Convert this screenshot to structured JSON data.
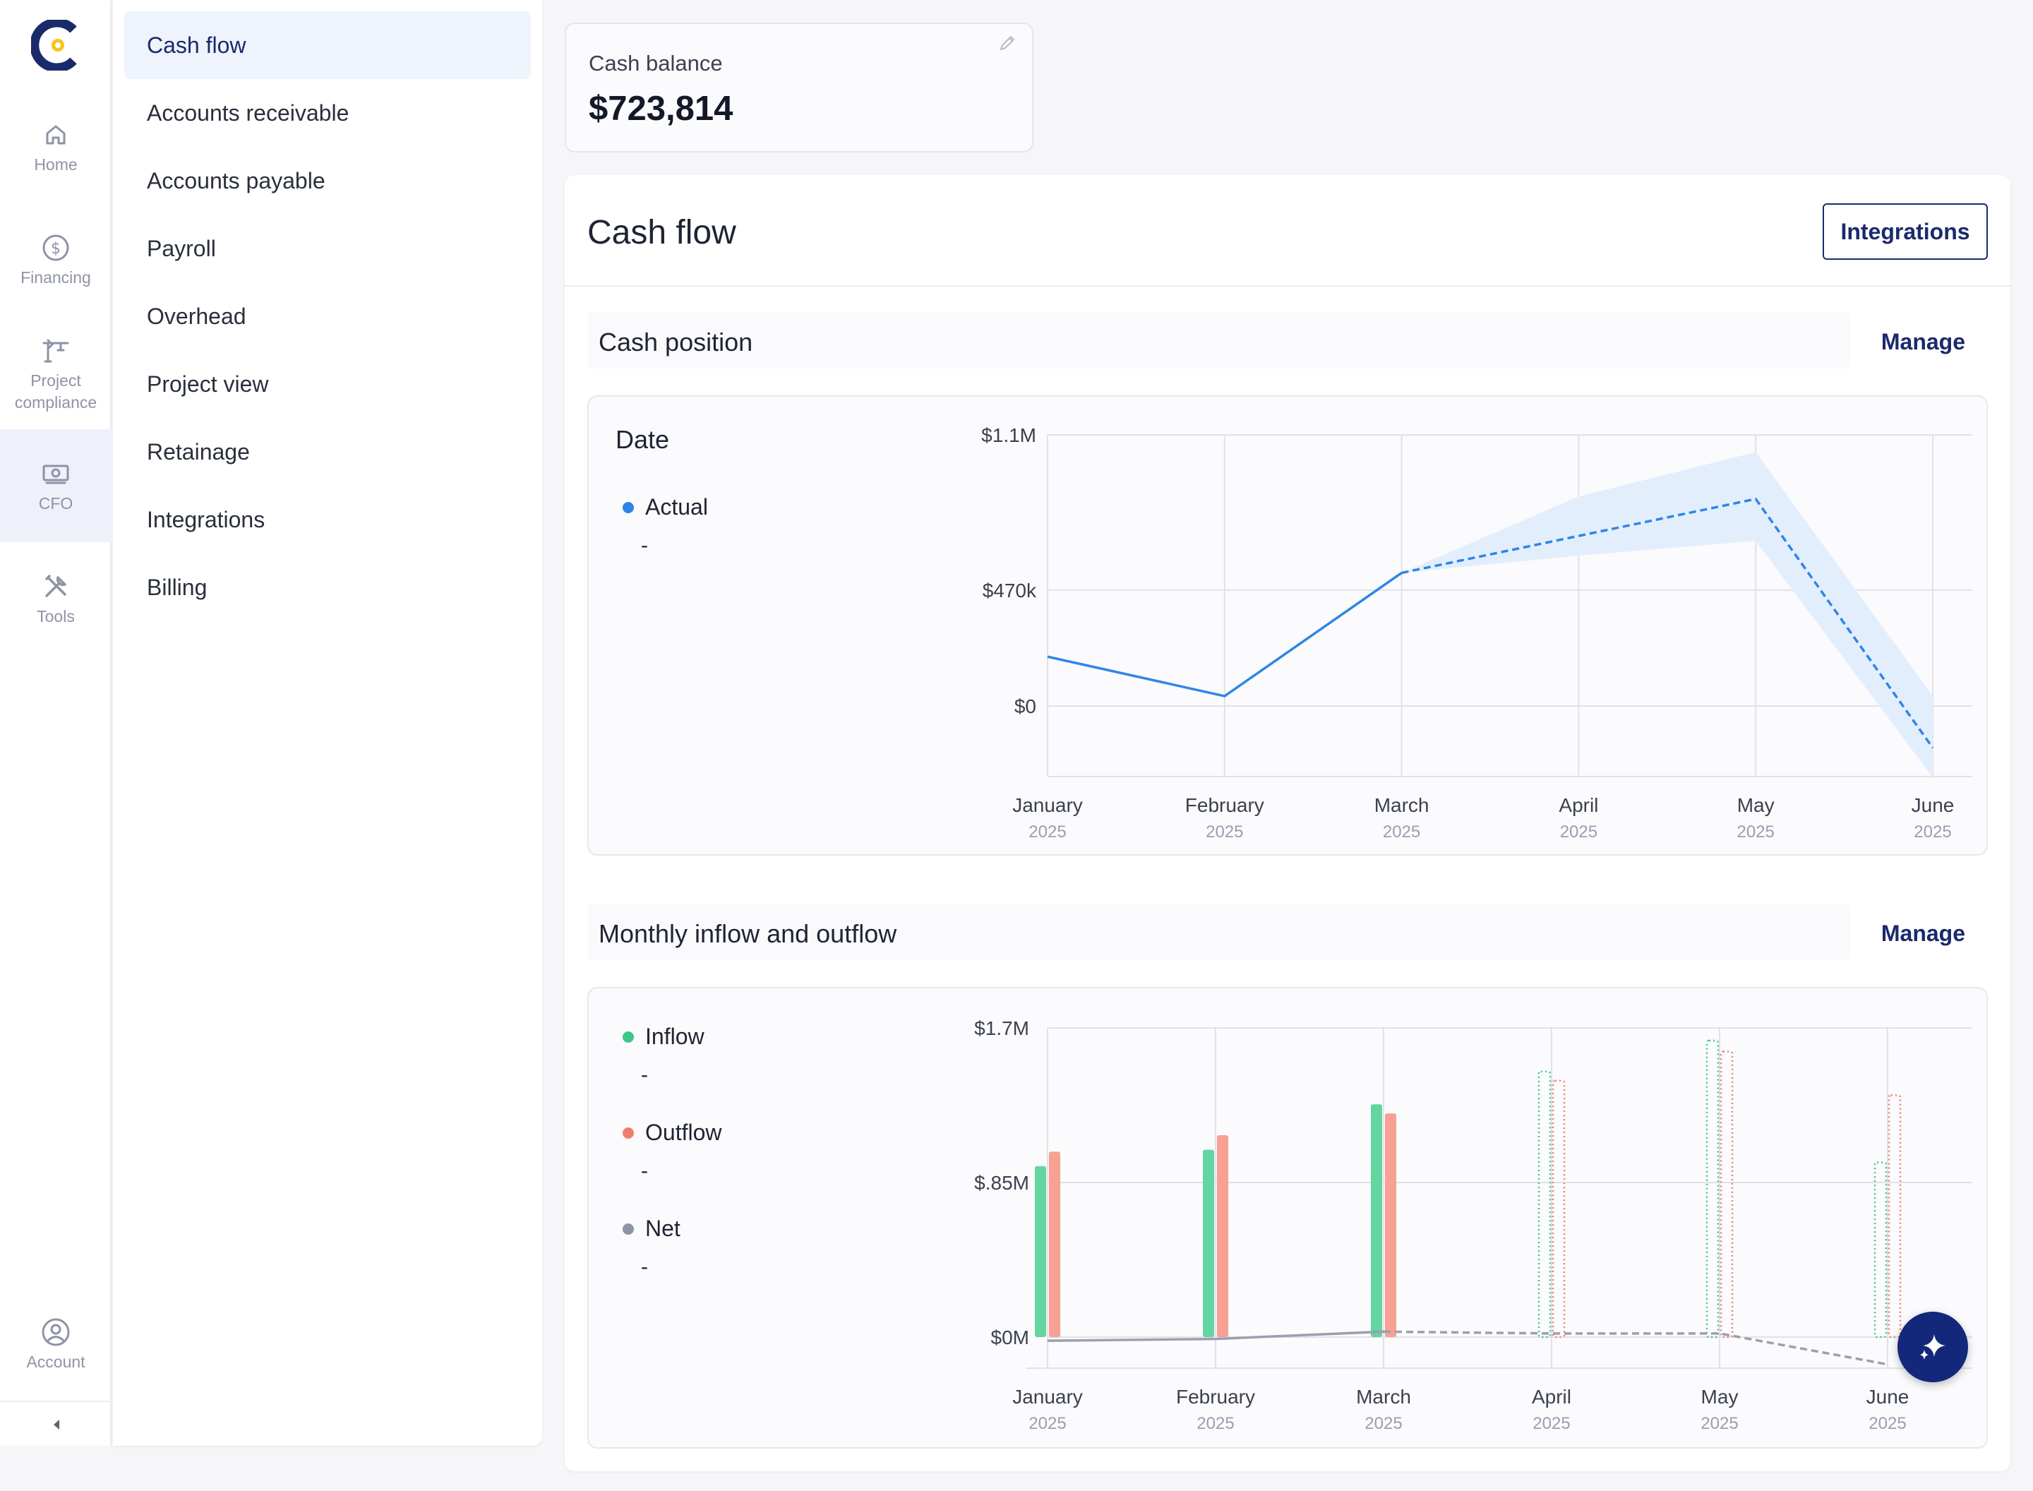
{
  "rail": {
    "items": [
      {
        "label": "Home",
        "icon": "home-icon"
      },
      {
        "label": "Financing",
        "icon": "dollar-circle-icon"
      },
      {
        "label": "Project compliance",
        "icon": "crane-icon"
      },
      {
        "label": "CFO",
        "icon": "cash-icon",
        "active": true
      },
      {
        "label": "Tools",
        "icon": "tools-icon"
      }
    ],
    "account_label": "Account"
  },
  "subnav": {
    "items": [
      {
        "label": "Cash flow",
        "active": true
      },
      {
        "label": "Accounts receivable"
      },
      {
        "label": "Accounts payable"
      },
      {
        "label": "Payroll"
      },
      {
        "label": "Overhead"
      },
      {
        "label": "Project view"
      },
      {
        "label": "Retainage"
      },
      {
        "label": "Integrations"
      },
      {
        "label": "Billing"
      }
    ]
  },
  "balance": {
    "label": "Cash balance",
    "value": "$723,814"
  },
  "main": {
    "title": "Cash flow",
    "integrations_label": "Integrations"
  },
  "cash_position": {
    "title": "Cash position",
    "manage_label": "Manage",
    "legend_title": "Date",
    "legend": [
      {
        "name": "Actual",
        "value": "-",
        "color": "#2d86e6"
      }
    ]
  },
  "inflow_outflow": {
    "title": "Monthly inflow and outflow",
    "manage_label": "Manage",
    "legend": [
      {
        "name": "Inflow",
        "value": "-",
        "color": "#3cc687"
      },
      {
        "name": "Outflow",
        "value": "-",
        "color": "#f07e6e"
      },
      {
        "name": "Net",
        "value": "-",
        "color": "#8e93a5"
      }
    ]
  },
  "chart_data": [
    {
      "type": "line",
      "categories": [
        "January",
        "February",
        "March",
        "April",
        "May",
        "June"
      ],
      "category_sublabels": [
        "2025",
        "2025",
        "2025",
        "2025",
        "2025",
        "2025"
      ],
      "ytick_labels": [
        "$1.1M",
        "$470k",
        "$0"
      ],
      "ytick_values": [
        1100000,
        470000,
        0
      ],
      "series": [
        {
          "name": "Actual",
          "values": [
            200000,
            40000,
            540000,
            null,
            null,
            null
          ],
          "style": "solid",
          "color": "#2d86e6"
        },
        {
          "values": [
            null,
            null,
            540000,
            690000,
            840000,
            -170000
          ],
          "style": "dashed",
          "color": "#2d86e6"
        }
      ],
      "band": {
        "lower": [
          null,
          null,
          540000,
          610000,
          670000,
          -290000
        ],
        "upper": [
          null,
          null,
          540000,
          850000,
          1030000,
          40000
        ],
        "color": "#e3eefc"
      }
    },
    {
      "type": "bar",
      "categories": [
        "January",
        "February",
        "March",
        "April",
        "May",
        "June"
      ],
      "category_sublabels": [
        "2025",
        "2025",
        "2025",
        "2025",
        "2025",
        "2025"
      ],
      "ytick_labels": [
        "$1.7M",
        "$.85M",
        "$0M"
      ],
      "ytick_values": [
        1700000,
        850000,
        0
      ],
      "series": [
        {
          "name": "Inflow",
          "values": [
            940000,
            1030000,
            1280000,
            1460000,
            1630000,
            960000
          ],
          "projected_from": 3,
          "color": "#64d4a0"
        },
        {
          "name": "Outflow",
          "values": [
            1020000,
            1110000,
            1230000,
            1410000,
            1570000,
            1330000
          ],
          "projected_from": 3,
          "color": "#f6a194"
        },
        {
          "name": "Net",
          "values": [
            -20000,
            -10000,
            30000,
            20000,
            20000,
            -150000
          ],
          "projected_from": 3,
          "color": "#9aa0b0"
        }
      ]
    }
  ]
}
